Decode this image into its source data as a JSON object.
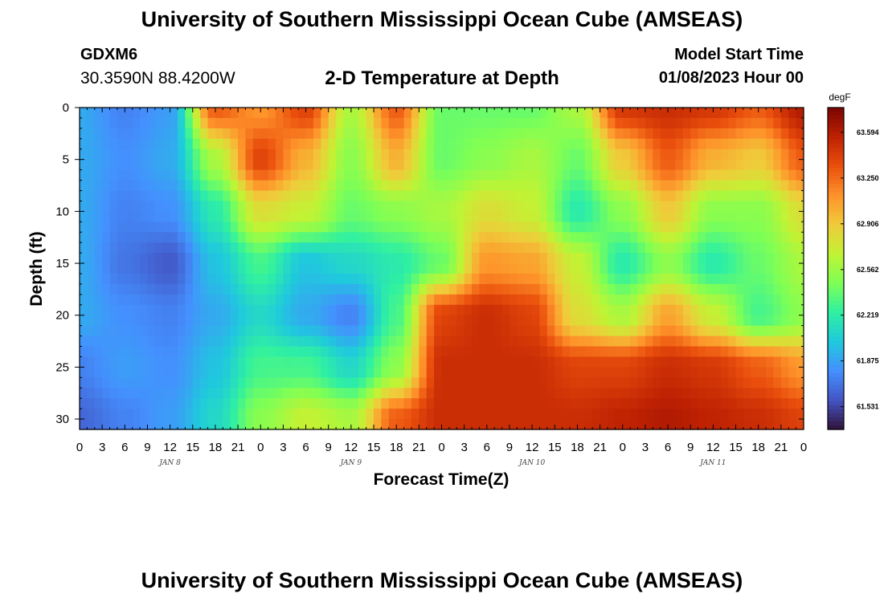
{
  "header": {
    "title": "University of Southern Mississippi Ocean Cube (AMSEAS)",
    "station": "GDXM6",
    "coords": "30.3590N  88.4200W",
    "subtitle": "2-D Temperature at Depth",
    "model_label": "Model Start Time",
    "model_date": "01/08/2023 Hour 00"
  },
  "footer": {
    "title": "University of Southern Mississippi Ocean Cube (AMSEAS)"
  },
  "colorbar": {
    "unit": "degF",
    "range": [
      61.36,
      63.78
    ],
    "labels": [
      "63.594",
      "63.250",
      "62.906",
      "62.562",
      "62.219",
      "61.875",
      "61.531"
    ],
    "label_values": [
      63.594,
      63.25,
      62.906,
      62.562,
      62.219,
      61.875,
      61.531
    ],
    "colors": [
      "#30123b",
      "#4454c4",
      "#4490fe",
      "#1fc9dd",
      "#2ff0a2",
      "#7eff55",
      "#c1f334",
      "#f0cb3a",
      "#fe922a",
      "#ea4f0d",
      "#be2102",
      "#7a0403"
    ]
  },
  "chart_data": {
    "type": "heatmap",
    "title": "2-D Temperature at Depth",
    "xlabel": "Forecast Time(Z)",
    "ylabel": "Depth (ft)",
    "unit": "degF",
    "x_hours": [
      0,
      6,
      12,
      18,
      24,
      30,
      36,
      42,
      48,
      54,
      60,
      66,
      72,
      78,
      84,
      90,
      96
    ],
    "y_depths_ft": [
      0,
      5,
      10,
      15,
      20,
      25,
      30
    ],
    "values": [
      [
        61.9,
        61.75,
        61.85,
        63.3,
        63.1,
        63.4,
        62.6,
        63.3,
        62.4,
        62.4,
        62.4,
        62.6,
        63.45,
        63.5,
        63.45,
        63.3,
        63.6
      ],
      [
        61.9,
        61.8,
        61.9,
        62.6,
        63.4,
        63.0,
        62.5,
        63.0,
        62.4,
        62.5,
        62.6,
        62.4,
        62.9,
        63.3,
        63.0,
        62.9,
        63.3
      ],
      [
        61.9,
        61.75,
        61.8,
        62.2,
        62.8,
        62.7,
        62.4,
        62.5,
        62.6,
        62.8,
        62.7,
        62.2,
        62.5,
        62.9,
        62.5,
        62.5,
        62.8
      ],
      [
        61.9,
        61.7,
        61.6,
        62.0,
        62.3,
        62.0,
        62.1,
        62.2,
        62.4,
        63.1,
        63.05,
        62.7,
        62.2,
        62.5,
        62.2,
        62.4,
        62.6
      ],
      [
        61.9,
        61.8,
        61.75,
        61.9,
        62.1,
        61.9,
        61.75,
        62.3,
        63.4,
        63.5,
        63.4,
        62.8,
        62.6,
        63.05,
        62.7,
        62.3,
        62.5
      ],
      [
        61.75,
        61.85,
        61.8,
        62.0,
        62.3,
        62.3,
        62.1,
        62.5,
        63.5,
        63.5,
        63.5,
        63.4,
        63.4,
        63.5,
        63.45,
        63.3,
        63.1
      ],
      [
        61.65,
        61.75,
        61.85,
        62.1,
        62.5,
        62.7,
        62.6,
        63.3,
        63.5,
        63.5,
        63.5,
        63.5,
        63.55,
        63.6,
        63.55,
        63.5,
        63.4
      ]
    ],
    "x_ticks": [
      "0",
      "3",
      "6",
      "9",
      "12",
      "15",
      "18",
      "21",
      "0",
      "3",
      "6",
      "9",
      "12",
      "15",
      "18",
      "21",
      "0",
      "3",
      "6",
      "9",
      "12",
      "15",
      "18",
      "21",
      "0",
      "3",
      "6",
      "9",
      "12",
      "15",
      "18",
      "21",
      "0"
    ],
    "day_labels": [
      "JAN 8",
      "JAN 9",
      "JAN 10",
      "JAN 11"
    ],
    "y_ticks": [
      "0",
      "5",
      "10",
      "15",
      "20",
      "25",
      "30"
    ],
    "xlim_hours": [
      0,
      96
    ],
    "ylim_ft": [
      0,
      31
    ],
    "y_inverted": true
  }
}
